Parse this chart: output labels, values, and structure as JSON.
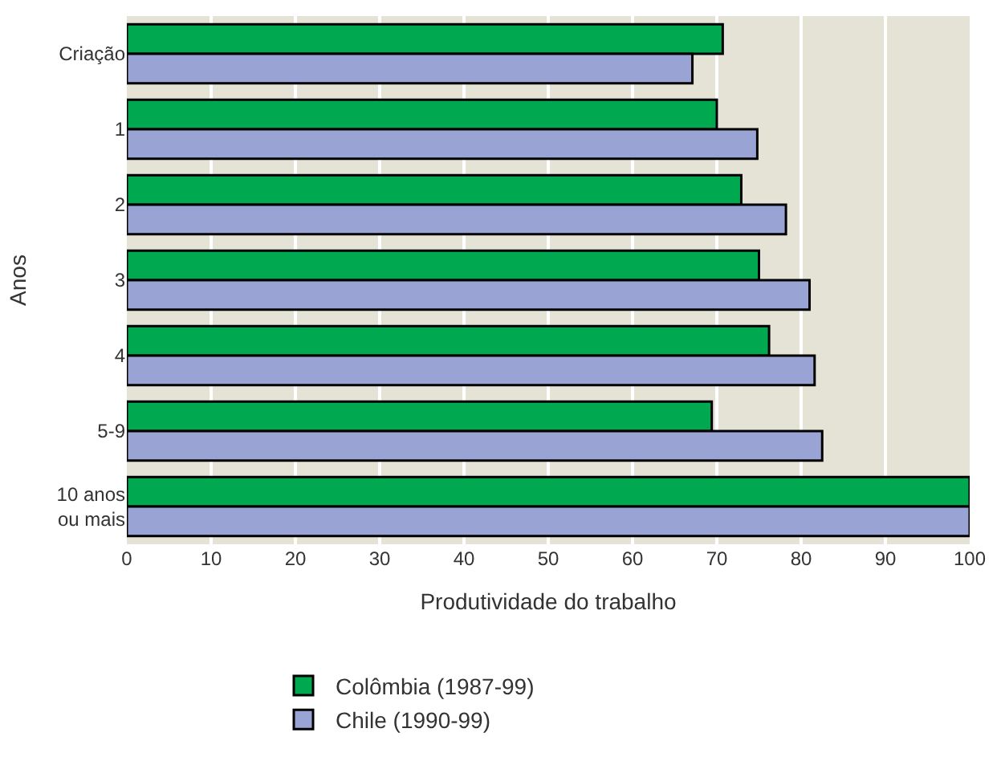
{
  "chart_data": {
    "type": "bar",
    "orientation": "horizontal",
    "xlabel": "Produtividade do trabalho",
    "ylabel": "Anos",
    "categories": [
      "Criação",
      "1",
      "2",
      "3",
      "4",
      "5-9",
      "10 anos\nou mais"
    ],
    "series": [
      {
        "name": "Colômbia (1987-99)",
        "color": "#00a84f",
        "values": [
          70.7,
          70.0,
          72.9,
          75.0,
          76.2,
          69.4,
          100
        ]
      },
      {
        "name": "Chile (1990-99)",
        "color": "#99a3d4",
        "values": [
          67.1,
          74.8,
          78.2,
          81.0,
          81.6,
          82.5,
          100
        ]
      }
    ],
    "xlim": [
      0,
      100
    ],
    "xticks": [
      0,
      10,
      20,
      30,
      40,
      50,
      60,
      70,
      80,
      90,
      100
    ],
    "grid": "x",
    "legend": "bottom"
  }
}
